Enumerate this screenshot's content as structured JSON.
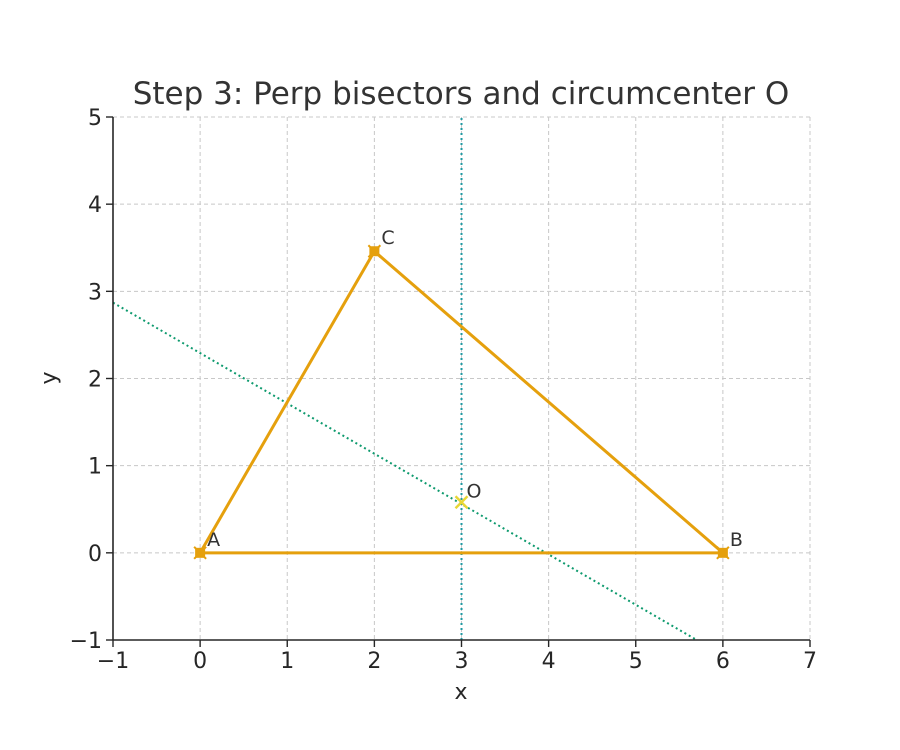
{
  "chart_data": {
    "type": "line",
    "title": "Step 3: Perp bisectors and circumcenter O",
    "xlabel": "x",
    "ylabel": "y",
    "xlim": [
      -1,
      7
    ],
    "ylim": [
      -1,
      5
    ],
    "xticks": [
      -1,
      0,
      1,
      2,
      3,
      4,
      5,
      6,
      7
    ],
    "yticks": [
      -1,
      0,
      1,
      2,
      3,
      4,
      5
    ],
    "xtick_labels": [
      "−1",
      "0",
      "1",
      "2",
      "3",
      "4",
      "5",
      "6",
      "7"
    ],
    "ytick_labels": [
      "−1",
      "0",
      "1",
      "2",
      "3",
      "4",
      "5"
    ],
    "grid": true,
    "triangle": {
      "color": "#e5a00d",
      "vertices": [
        {
          "label": "A",
          "x": 0,
          "y": 0
        },
        {
          "label": "B",
          "x": 6,
          "y": 0
        },
        {
          "label": "C",
          "x": 2,
          "y": 3.46
        }
      ]
    },
    "bisectors": [
      {
        "name": "perp bisector AB",
        "color": "#1f9aa3",
        "x1": 3,
        "y1": -1,
        "x2": 3,
        "y2": 5
      },
      {
        "name": "perp bisector AC",
        "color": "#0e9a6e",
        "x1": -1,
        "y1": 2.87,
        "x2": 5.7,
        "y2": -1
      }
    ],
    "circumcenter": {
      "label": "O",
      "x": 3,
      "y": 0.58,
      "color": "#e8d635"
    }
  }
}
